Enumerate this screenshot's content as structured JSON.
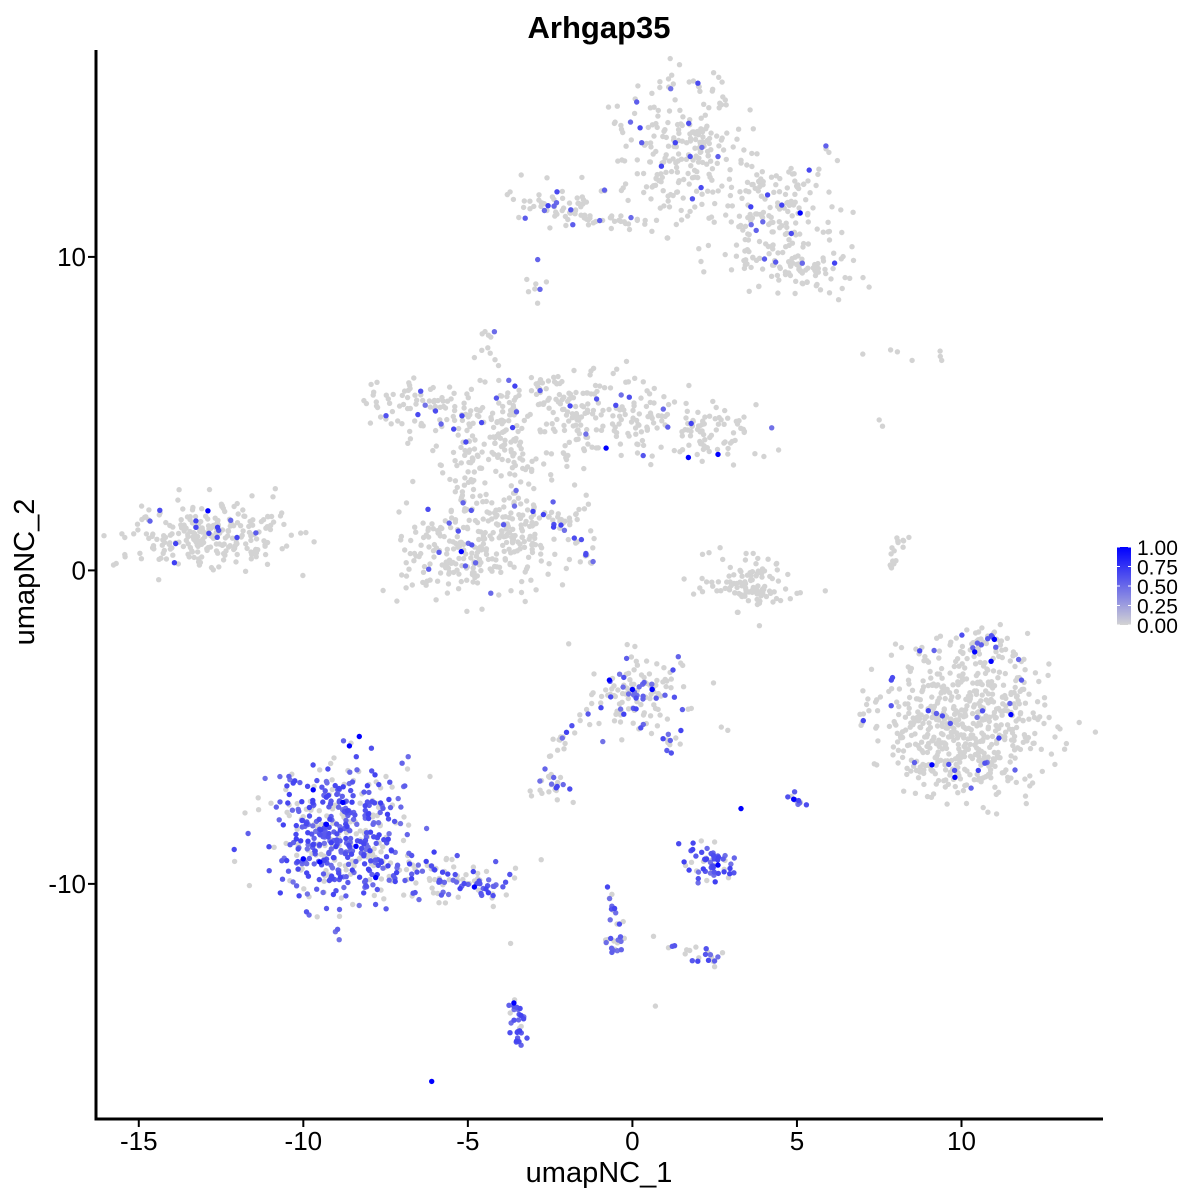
{
  "chart_data": {
    "type": "scatter",
    "title": "Arhgap35",
    "xlabel": "umapNC_1",
    "ylabel": "umapNC_2",
    "xlim": [
      -16.3,
      14.3
    ],
    "ylim": [
      -17.5,
      16.6
    ],
    "x_ticks": [
      -15,
      -10,
      -5,
      0,
      5,
      10
    ],
    "x_tick_labels": [
      "-15",
      "-10",
      "-5",
      "0",
      "5",
      "10"
    ],
    "y_ticks": [
      -10,
      0,
      10
    ],
    "y_tick_labels": [
      "-10",
      "0",
      "10"
    ],
    "grid": false,
    "legend": {
      "position": "right",
      "type": "colorbar",
      "ticks": [
        1.0,
        0.75,
        0.5,
        0.25,
        0.0
      ],
      "tick_labels": [
        "1.00",
        "0.75",
        "0.50",
        "0.25",
        "0.00"
      ],
      "low_color": "#d3d3d3",
      "high_color": "#0000ff"
    },
    "base_point_color": "#d3d3d3",
    "clusters": [
      {
        "cx": 1.5,
        "cy": 13.5,
        "sx": 0.9,
        "sy": 1.2,
        "n": 240,
        "expr_frac": 0.05
      },
      {
        "cx": 4.3,
        "cy": 11.4,
        "sx": 1.0,
        "sy": 0.9,
        "n": 180,
        "expr_frac": 0.06
      },
      {
        "cx": 5.2,
        "cy": 9.6,
        "sx": 0.8,
        "sy": 0.5,
        "n": 70,
        "expr_frac": 0.05
      },
      {
        "cx": -2.4,
        "cy": 11.7,
        "sx": 0.7,
        "sy": 0.35,
        "n": 60,
        "expr_frac": 0.06
      },
      {
        "cx": -12.8,
        "cy": 1.1,
        "sx": 1.2,
        "sy": 0.55,
        "n": 260,
        "expr_frac": 0.05
      },
      {
        "cx": -1.9,
        "cy": 5.4,
        "sx": 1.8,
        "sy": 0.6,
        "n": 160,
        "expr_frac": 0.04
      },
      {
        "cx": 1.5,
        "cy": 4.4,
        "sx": 1.5,
        "sy": 0.5,
        "n": 120,
        "expr_frac": 0.05
      },
      {
        "cx": -4.4,
        "cy": 3.3,
        "sx": 0.9,
        "sy": 1.0,
        "n": 140,
        "expr_frac": 0.05
      },
      {
        "cx": -3.5,
        "cy": 1.2,
        "sx": 1.0,
        "sy": 0.9,
        "n": 160,
        "expr_frac": 0.04
      },
      {
        "cx": -5.6,
        "cy": 0.4,
        "sx": 0.9,
        "sy": 0.7,
        "n": 150,
        "expr_frac": 0.07
      },
      {
        "cx": -6.7,
        "cy": 5.3,
        "sx": 0.8,
        "sy": 0.5,
        "n": 60,
        "expr_frac": 0.05
      },
      {
        "cx": 3.4,
        "cy": -0.4,
        "sx": 0.8,
        "sy": 0.45,
        "n": 90,
        "expr_frac": 0.0
      },
      {
        "cx": 10.0,
        "cy": -4.7,
        "sx": 1.3,
        "sy": 1.1,
        "n": 520,
        "expr_frac": 0.04
      },
      {
        "cx": 10.1,
        "cy": -6.2,
        "sx": 1.0,
        "sy": 0.5,
        "n": 100,
        "expr_frac": 0.04
      },
      {
        "cx": 0.2,
        "cy": -3.9,
        "sx": 0.8,
        "sy": 0.6,
        "n": 130,
        "expr_frac": 0.25
      },
      {
        "cx": -8.8,
        "cy": -8.4,
        "sx": 1.1,
        "sy": 1.2,
        "n": 480,
        "expr_frac": 0.72
      },
      {
        "cx": -6.0,
        "cy": -9.8,
        "sx": 1.1,
        "sy": 0.35,
        "n": 90,
        "expr_frac": 0.45
      },
      {
        "cx": 2.3,
        "cy": -9.3,
        "sx": 0.35,
        "sy": 0.35,
        "n": 60,
        "expr_frac": 0.8
      },
      {
        "cx": -2.4,
        "cy": -6.8,
        "sx": 0.3,
        "sy": 0.2,
        "n": 25,
        "expr_frac": 0.3
      },
      {
        "cx": -0.6,
        "cy": -12.0,
        "sx": 0.15,
        "sy": 0.3,
        "n": 15,
        "expr_frac": 0.6
      },
      {
        "cx": 2.3,
        "cy": -12.4,
        "sx": 0.25,
        "sy": 0.15,
        "n": 12,
        "expr_frac": 0.5
      },
      {
        "cx": 5.0,
        "cy": -7.3,
        "sx": 0.1,
        "sy": 0.15,
        "n": 10,
        "expr_frac": 0.5
      },
      {
        "cx": 10.8,
        "cy": -2.3,
        "sx": 0.4,
        "sy": 0.3,
        "n": 40,
        "expr_frac": 0.1
      }
    ],
    "paths": [
      {
        "x1": -2.0,
        "y1": 11.3,
        "x2": 0.7,
        "y2": 11.1,
        "n": 30,
        "spread": 0.15,
        "expr_frac": 0.05
      },
      {
        "x1": -2.9,
        "y1": 9.8,
        "x2": -2.9,
        "y2": 8.3,
        "n": 8,
        "spread": 0.15,
        "expr_frac": 0.2
      },
      {
        "x1": -4.5,
        "y1": 7.6,
        "x2": -3.2,
        "y2": 3.3,
        "n": 30,
        "spread": 0.2,
        "expr_frac": 0.05
      },
      {
        "x1": -7.0,
        "y1": 6.1,
        "x2": -3.5,
        "y2": 4.0,
        "n": 35,
        "spread": 0.2,
        "expr_frac": 0.06
      },
      {
        "x1": -2.3,
        "y1": 1.8,
        "x2": -1.2,
        "y2": 0.2,
        "n": 18,
        "spread": 0.12,
        "expr_frac": 0.3
      },
      {
        "x1": -1.0,
        "y1": 5.7,
        "x2": -2.3,
        "y2": 3.4,
        "n": 25,
        "spread": 0.2,
        "expr_frac": 0.05
      },
      {
        "x1": -2.5,
        "y1": -6.0,
        "x2": -1.2,
        "y2": -4.3,
        "n": 20,
        "spread": 0.12,
        "expr_frac": 0.08
      },
      {
        "x1": 0.7,
        "y1": -4.3,
        "x2": 1.2,
        "y2": -6.0,
        "n": 14,
        "spread": 0.12,
        "expr_frac": 0.3
      },
      {
        "x1": -5.3,
        "y1": -9.8,
        "x2": -3.9,
        "y2": -10.4,
        "n": 25,
        "spread": 0.12,
        "expr_frac": 0.45
      },
      {
        "x1": -3.6,
        "y1": -13.7,
        "x2": -3.4,
        "y2": -15.2,
        "n": 28,
        "spread": 0.12,
        "expr_frac": 0.9
      },
      {
        "x1": -0.8,
        "y1": -10.0,
        "x2": -0.4,
        "y2": -11.8,
        "n": 14,
        "spread": 0.1,
        "expr_frac": 0.5
      },
      {
        "x1": 0.5,
        "y1": -11.6,
        "x2": 2.3,
        "y2": -12.3,
        "n": 10,
        "spread": 0.1,
        "expr_frac": 0.3
      },
      {
        "x1": 8.2,
        "y1": 1.2,
        "x2": 7.8,
        "y2": 0.0,
        "n": 16,
        "spread": 0.1,
        "expr_frac": 0.0
      },
      {
        "x1": 2.9,
        "y1": -0.6,
        "x2": 4.4,
        "y2": -0.8,
        "n": 20,
        "spread": 0.1,
        "expr_frac": 0.0
      },
      {
        "x1": -1.3,
        "y1": 2.4,
        "x2": -1.9,
        "y2": 1.4,
        "n": 8,
        "spread": 0.1,
        "expr_frac": 0.0
      },
      {
        "x1": 7.2,
        "y1": 7.2,
        "x2": 9.9,
        "y2": 6.8,
        "n": 4,
        "spread": 0.2,
        "expr_frac": 0.0
      }
    ],
    "isolated_points": [
      {
        "x": -6.1,
        "y": -16.3,
        "value": 1.0
      },
      {
        "x": 3.3,
        "y": -7.6,
        "value": 1.0
      },
      {
        "x": 4.9,
        "y": -7.3,
        "value": 1.0
      },
      {
        "x": 1.7,
        "y": 3.6,
        "value": 1.0
      },
      {
        "x": 2.6,
        "y": 3.7,
        "value": 1.0
      },
      {
        "x": -0.8,
        "y": 3.9,
        "value": 1.0
      },
      {
        "x": -5.2,
        "y": 0.6,
        "value": 1.0
      },
      {
        "x": -12.9,
        "y": 1.9,
        "value": 1.0
      },
      {
        "x": 5.1,
        "y": 11.4,
        "value": 1.0
      },
      {
        "x": 9.1,
        "y": -6.2,
        "value": 1.0
      },
      {
        "x": 9.8,
        "y": -6.6,
        "value": 1.0
      },
      {
        "x": 10.4,
        "y": -2.6,
        "value": 1.0
      },
      {
        "x": 10.9,
        "y": -2.9,
        "value": 1.0
      },
      {
        "x": 11.0,
        "y": -2.2,
        "value": 1.0
      },
      {
        "x": 11.5,
        "y": -4.6,
        "value": 1.0
      },
      {
        "x": 0.6,
        "y": -3.8,
        "value": 1.0
      },
      {
        "x": 0.0,
        "y": -3.8,
        "value": 1.0
      },
      {
        "x": -0.7,
        "y": -3.5,
        "value": 1.0
      },
      {
        "x": 2.6,
        "y": -9.4,
        "value": 1.0
      },
      {
        "x": -3.6,
        "y": -13.8,
        "value": 1.0
      },
      {
        "x": -8.6,
        "y": -5.6,
        "value": 1.0
      },
      {
        "x": -8.3,
        "y": -5.3,
        "value": 1.0
      },
      {
        "x": -9.7,
        "y": -7.0,
        "value": 1.0
      },
      {
        "x": -9.3,
        "y": -8.1,
        "value": 1.0
      },
      {
        "x": -8.8,
        "y": -7.4,
        "value": 1.0
      },
      {
        "x": -8.4,
        "y": -8.8,
        "value": 1.0
      },
      {
        "x": -7.8,
        "y": -9.8,
        "value": 1.0
      },
      {
        "x": -10.0,
        "y": -9.2,
        "value": 1.0
      },
      {
        "x": -9.5,
        "y": -9.3,
        "value": 1.0
      },
      {
        "x": -4.8,
        "y": -10.1,
        "value": 1.0
      },
      {
        "x": 7.0,
        "y": 6.9,
        "value": 0.0
      },
      {
        "x": 8.5,
        "y": 6.7,
        "value": 0.0
      },
      {
        "x": 9.4,
        "y": 6.7,
        "value": 0.0
      },
      {
        "x": 7.5,
        "y": 4.8,
        "value": 0.0
      },
      {
        "x": 7.6,
        "y": 4.6,
        "value": 0.0
      },
      {
        "x": 2.7,
        "y": -5.0,
        "value": 0.0
      },
      {
        "x": 2.9,
        "y": -5.1,
        "value": 0.0
      },
      {
        "x": 0.7,
        "y": -13.9,
        "value": 0.0
      },
      {
        "x": -3.7,
        "y": -11.9,
        "value": 0.0
      },
      {
        "x": -1.8,
        "y": -7.4,
        "value": 0.0
      }
    ]
  }
}
